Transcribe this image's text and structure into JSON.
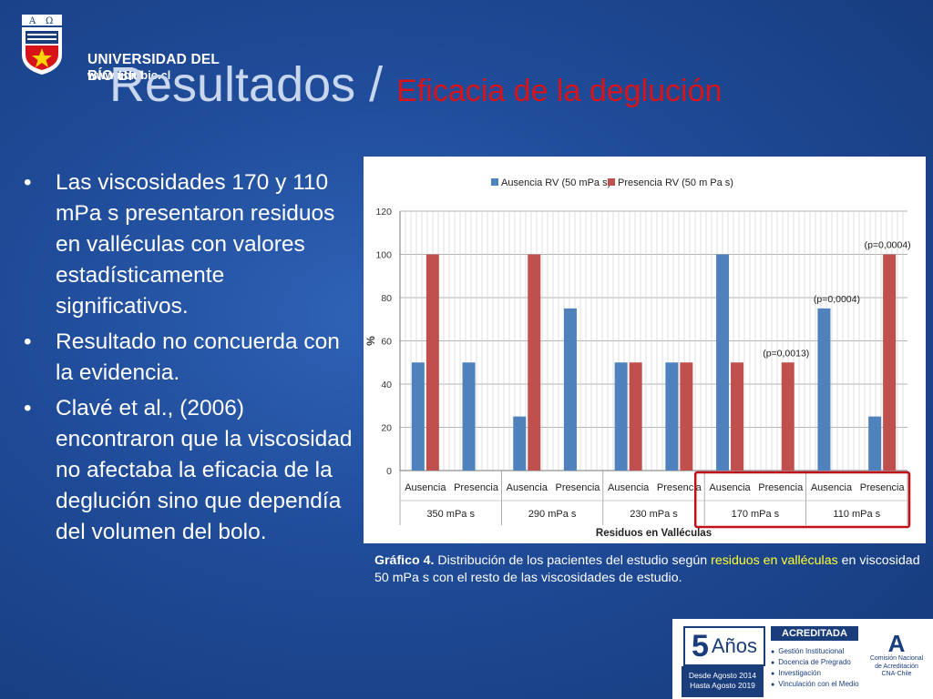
{
  "header": {
    "university": "UNIVERSIDAD DEL BÍO-BÍO",
    "url": "www.ubiobio.cl",
    "title_main": "Resultados / ",
    "title_sub": "Eficacia de la deglución"
  },
  "bullets": [
    {
      "marker": "•",
      "text": "Las viscosidades 170 y 110 mPa s presentaron residuos en valléculas con valores estadísticamente significativos."
    },
    {
      "marker": "•",
      "text": "Resultado no concuerda con la evidencia."
    },
    {
      "marker": "•",
      "text": "Clavé et al., (2006) encontraron que la viscosidad no afectaba la eficacia de la deglución sino que dependía del volumen del bolo."
    }
  ],
  "chart_data": {
    "type": "bar",
    "ylabel": "%",
    "xlabel": "Residuos en Valléculas",
    "ylim": [
      0,
      120
    ],
    "yticks": [
      0,
      20,
      40,
      60,
      80,
      100,
      120
    ],
    "grid": true,
    "legend_position": "top",
    "groups": [
      {
        "label": "350 mPa s",
        "categories": [
          "Ausencia",
          "Presencia"
        ]
      },
      {
        "label": "290 mPa s",
        "categories": [
          "Ausencia",
          "Presencia"
        ]
      },
      {
        "label": "230 mPa s",
        "categories": [
          "Ausencia",
          "Presencia"
        ]
      },
      {
        "label": "170 mPa s",
        "categories": [
          "Ausencia",
          "Presencia"
        ]
      },
      {
        "label": "110 mPa s",
        "categories": [
          "Ausencia",
          "Presencia"
        ]
      }
    ],
    "series": [
      {
        "name": "Ausencia RV (50 mPa s)",
        "color": "#4f81bd",
        "values": [
          50,
          50,
          25,
          75,
          50,
          50,
          100,
          null,
          75,
          25
        ]
      },
      {
        "name": "Presencia RV (50 m Pa s)",
        "color": "#c0504d",
        "values": [
          100,
          null,
          100,
          null,
          50,
          50,
          50,
          50,
          null,
          100
        ]
      }
    ],
    "annotations": [
      {
        "text": "(p=0,0013)",
        "category_index": 7,
        "value": 50
      },
      {
        "text": "(p=0,0004)",
        "category_index": 8,
        "value": 75
      },
      {
        "text": "(p=0,0004)",
        "category_index": 9,
        "value": 100
      }
    ],
    "highlight_groups": [
      3,
      4
    ]
  },
  "caption": {
    "label": "Gráfico 4.",
    "text1": " Distribución de los pacientes del estudio según ",
    "hl1": "residuos en valléculas",
    "text2": " en viscosidad 50 mPa s con el resto de las viscosidades de estudio."
  },
  "badge": {
    "years_number": "5",
    "years_word": "Años",
    "dates": [
      "Desde Agosto 2014",
      "Hasta Agosto 2019"
    ],
    "accredited": "ACREDITADA",
    "areas": [
      "Gestión Institucional",
      "Docencia de Pregrado",
      "Investigación",
      "Vinculación con el Medio"
    ],
    "cna_mark": "A",
    "cna": [
      "Comisión Nacional",
      "de Acreditación",
      "CNA-Chile"
    ]
  }
}
